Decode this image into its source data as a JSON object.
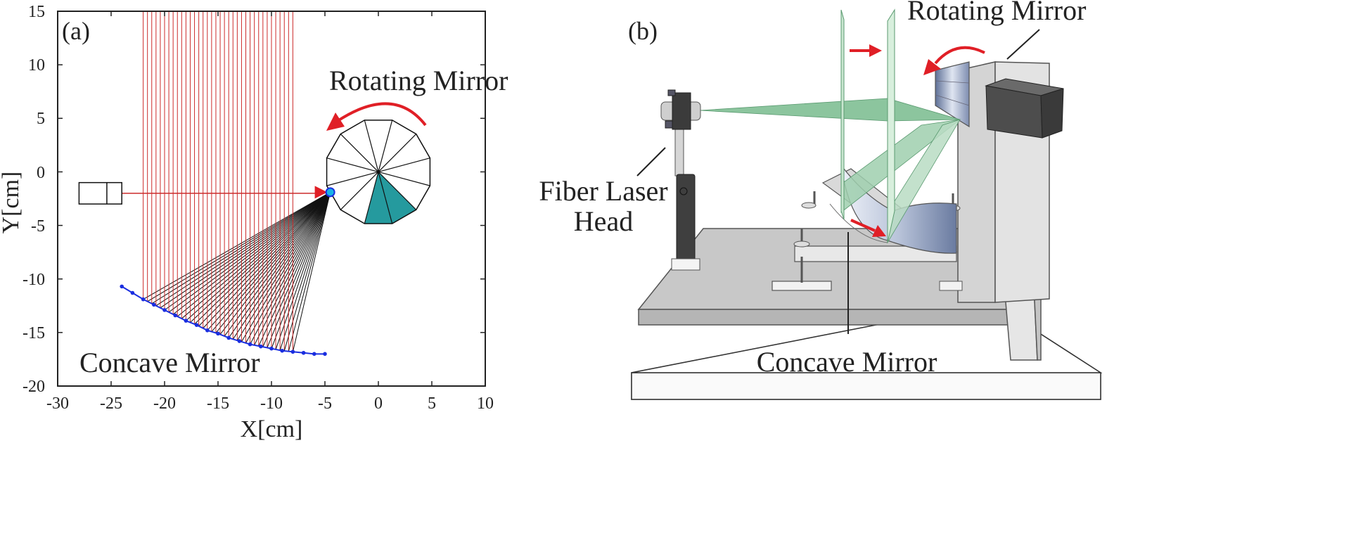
{
  "panel_a": {
    "panel_label": "(a)",
    "x_label": "X[cm]",
    "y_label": "Y[cm]",
    "x_ticks": [
      "-30",
      "-25",
      "-20",
      "-15",
      "-10",
      "-5",
      "0",
      "5",
      "10"
    ],
    "y_ticks": [
      "15",
      "10",
      "5",
      "0",
      "-5",
      "-10",
      "-15",
      "-20"
    ],
    "rotating_mirror_label": "Rotating Mirror",
    "concave_mirror_label": "Concave Mirror"
  },
  "panel_b": {
    "panel_label": "(b)",
    "rotating_mirror_label": "Rotating Mirror",
    "fiber_laser_label_line1": "Fiber Laser",
    "fiber_laser_label_line2": "Head",
    "concave_mirror_label": "Concave Mirror"
  },
  "colors": {
    "ray_red": "#cc2b2b",
    "ray_black": "#111111",
    "mirror_blue": "#1a2ee0",
    "facet_cyan": "#0d8f93",
    "arrow_red": "#e01f26",
    "beam_green": "#7fbf93"
  },
  "chart_data": {
    "type": "diagram-plot",
    "xlim": [
      -30,
      10
    ],
    "ylim": [
      -20,
      15
    ],
    "source_point": [
      -4.5,
      -1.9
    ],
    "laser_box": {
      "x": [
        -28,
        -24
      ],
      "y": [
        -3,
        -1
      ]
    },
    "rotating_mirror_center": [
      0,
      0
    ],
    "rotating_mirror_radius": 5,
    "rotating_mirror_facets": 12,
    "concave_mirror_points": [
      [
        -24,
        -10.7
      ],
      [
        -23,
        -11.3
      ],
      [
        -22,
        -11.9
      ],
      [
        -21,
        -12.4
      ],
      [
        -20,
        -12.9
      ],
      [
        -19,
        -13.4
      ],
      [
        -18,
        -13.9
      ],
      [
        -17,
        -14.3
      ],
      [
        -16,
        -14.8
      ],
      [
        -15,
        -15.1
      ],
      [
        -14,
        -15.5
      ],
      [
        -13,
        -15.8
      ],
      [
        -12,
        -16.1
      ],
      [
        -11,
        -16.3
      ],
      [
        -10,
        -16.5
      ],
      [
        -9,
        -16.7
      ],
      [
        -8,
        -16.8
      ],
      [
        -7,
        -16.9
      ],
      [
        -6,
        -17.0
      ],
      [
        -5,
        -17.0
      ]
    ],
    "ray_x_range": [
      -22,
      -8
    ],
    "ray_count": 36
  }
}
